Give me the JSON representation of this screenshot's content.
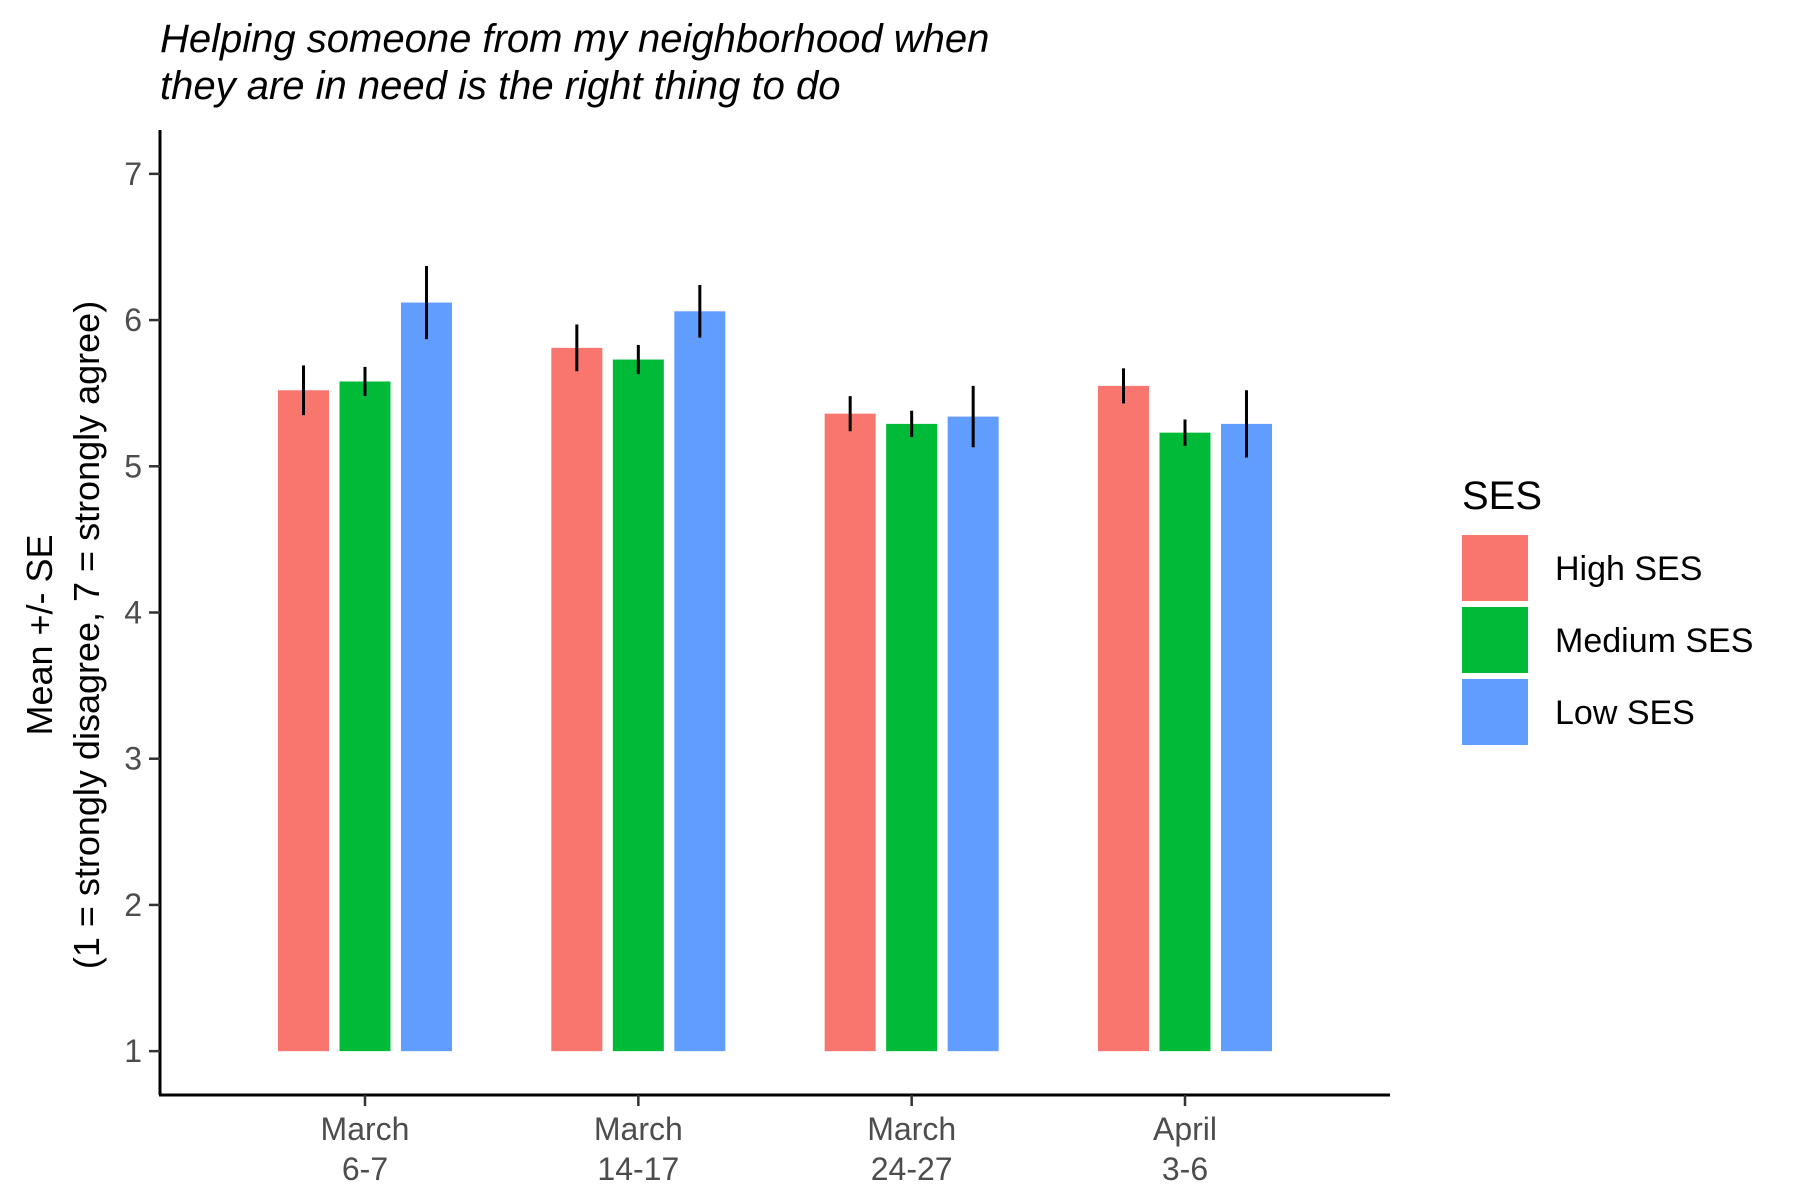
{
  "chart_data": {
    "type": "bar",
    "title_lines": [
      "Helping someone from my neighborhood when",
      "they are in need is the right thing to do"
    ],
    "ylabel_lines": [
      "Mean +/- SE",
      "(1 = strongly disagree, 7 = strongly agree)"
    ],
    "xlabel": "",
    "categories": [
      [
        "March",
        "6-7"
      ],
      [
        "March",
        "14-17"
      ],
      [
        "March",
        "24-27"
      ],
      [
        "April",
        "3-6"
      ]
    ],
    "ylim": [
      0.7,
      7.3
    ],
    "bar_base": 1,
    "yticks": [
      1,
      2,
      3,
      4,
      5,
      6,
      7
    ],
    "ytick_labels": [
      "1",
      "2",
      "3",
      "4",
      "5",
      "6",
      "7"
    ],
    "legend": {
      "title": "SES",
      "placement": "right"
    },
    "grid": false,
    "series": [
      {
        "name": "High SES",
        "color": "#F8766D",
        "values": [
          5.52,
          5.81,
          5.36,
          5.55
        ],
        "se": [
          0.17,
          0.16,
          0.12,
          0.12
        ]
      },
      {
        "name": "Medium SES",
        "color": "#00BA38",
        "values": [
          5.58,
          5.73,
          5.29,
          5.23
        ],
        "se": [
          0.1,
          0.1,
          0.09,
          0.09
        ]
      },
      {
        "name": "Low SES",
        "color": "#619CFF",
        "values": [
          6.12,
          6.06,
          5.34,
          5.29
        ],
        "se": [
          0.25,
          0.18,
          0.21,
          0.23
        ]
      }
    ]
  }
}
